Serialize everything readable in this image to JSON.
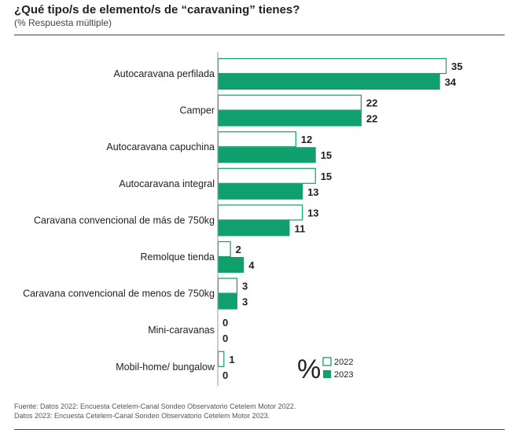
{
  "header": {
    "title": "¿Qué tipo/s de elemento/s de “caravaning” tienes?",
    "subtitle": "(% Respuesta múltiple)"
  },
  "footer": {
    "source_line_1": "Fuente: Datos 2022: Encuesta Cetelem-Canal Sondeo Observatorio Cetelem Motor 2022.",
    "source_line_2": "Datos 2023: Encuesta Cetelem-Canal Sondeo Observatorio Cetelem Motor 2023."
  },
  "colors": {
    "accent": "#10a06e",
    "outline": "#10a06e",
    "text": "#222222"
  },
  "chart_data": {
    "type": "bar",
    "orientation": "horizontal",
    "title": "¿Qué tipo/s de elemento/s de “caravaning” tienes?",
    "subtitle": "(% Respuesta múltiple)",
    "unit_symbol": "%",
    "categories": [
      "Autocaravana perfilada",
      "Camper",
      "Autocaravana capuchina",
      "Autocaravana integral",
      "Caravana convencional de más de 750kg",
      "Remolque tienda",
      "Caravana convencional de menos de 750kg",
      "Mini-caravanas",
      "Mobil-home/ bungalow"
    ],
    "series": [
      {
        "name": "2022",
        "style": "outline",
        "values": [
          35,
          22,
          12,
          15,
          13,
          2,
          3,
          0,
          1
        ]
      },
      {
        "name": "2023",
        "style": "filled",
        "values": [
          34,
          22,
          15,
          13,
          11,
          4,
          3,
          0,
          0
        ]
      }
    ],
    "xlim": [
      0,
      35
    ],
    "grid": false,
    "legend": "bottom-right"
  }
}
